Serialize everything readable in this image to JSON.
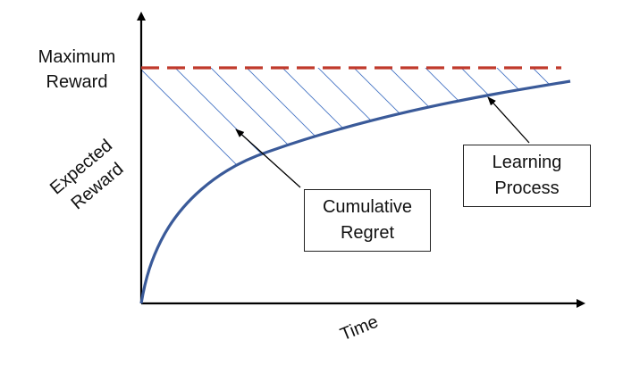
{
  "labels": {
    "max_reward": [
      "Maximum",
      "Reward"
    ],
    "y_axis": [
      "Expected",
      "Reward"
    ],
    "x_axis": "Time"
  },
  "callouts": {
    "regret": [
      "Cumulative",
      "Regret"
    ],
    "learning": [
      "Learning",
      "Process"
    ]
  },
  "colors": {
    "axis": "#000000",
    "max_line": "#c0392b",
    "curve": "#3a5a99",
    "hatch": "#4472c4",
    "box_border": "#222222"
  }
}
